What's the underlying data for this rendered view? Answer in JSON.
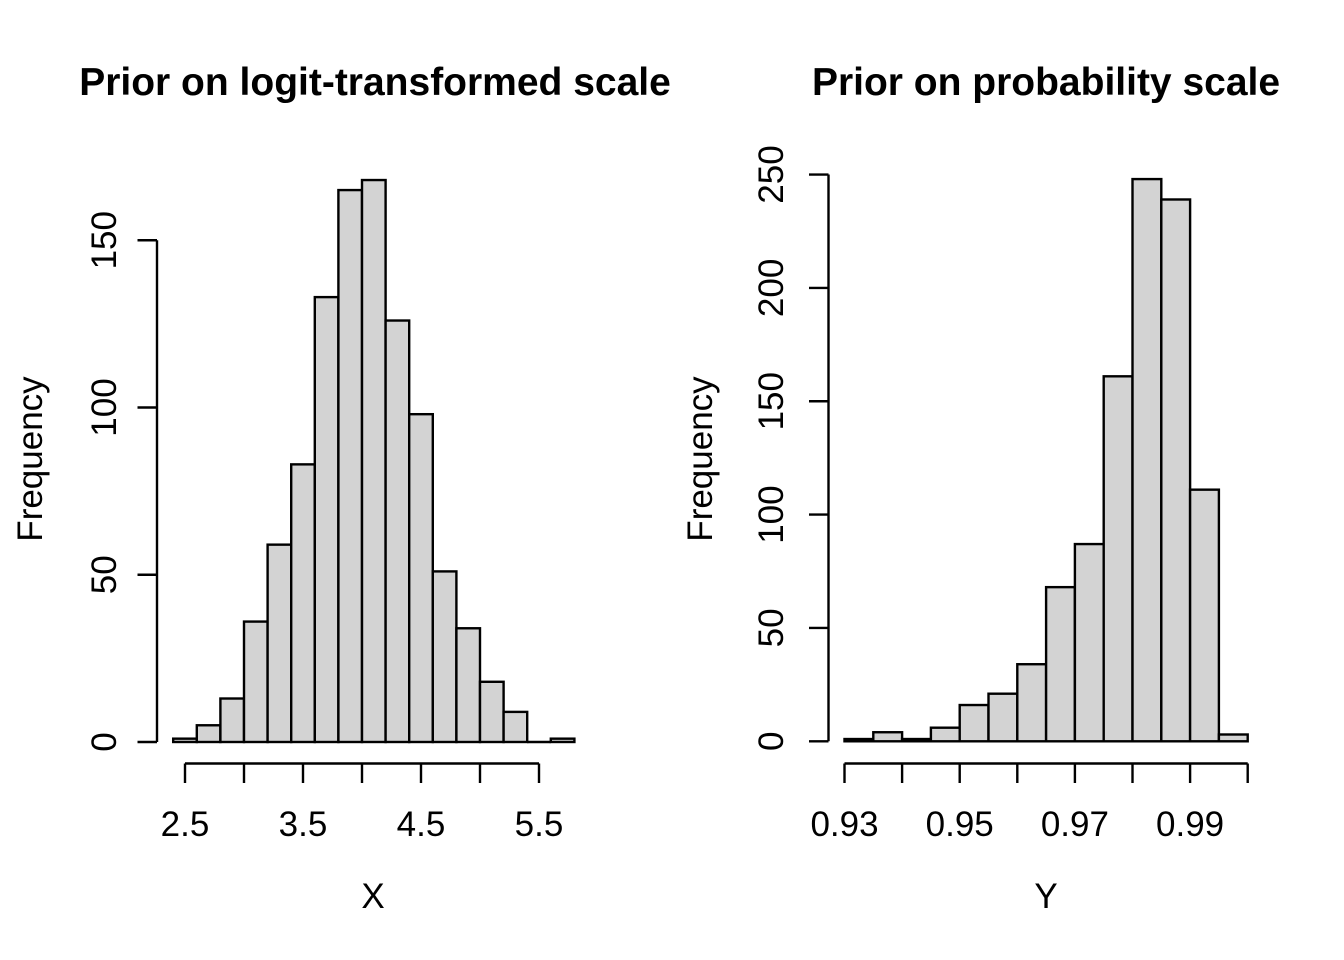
{
  "figure": {
    "background": "#ffffff",
    "bar_fill": "#d3d3d3",
    "bar_stroke": "#000000",
    "axis_color": "#000000",
    "text_color": "#000000"
  },
  "chart_data": [
    {
      "type": "bar",
      "subtype": "histogram",
      "title": "Prior on logit-transformed scale",
      "xlabel": "X",
      "ylabel": "Frequency",
      "bin_edges": [
        2.4,
        2.6,
        2.8,
        3.0,
        3.2,
        3.4,
        3.6,
        3.8,
        4.0,
        4.2,
        4.4,
        4.6,
        4.8,
        5.0,
        5.2,
        5.4,
        5.6,
        5.8
      ],
      "counts": [
        1,
        5,
        13,
        36,
        59,
        83,
        133,
        165,
        168,
        126,
        98,
        51,
        34,
        18,
        9,
        0,
        1
      ],
      "total_draws": 1000,
      "x_axis": {
        "ticks": [
          2.5,
          3.0,
          3.5,
          4.0,
          4.5,
          5.0,
          5.5
        ],
        "labeled_ticks": [
          2.5,
          3.5,
          4.5,
          5.5
        ],
        "tick_labels": [
          "2.5",
          "3.5",
          "4.5",
          "5.5"
        ]
      },
      "y_axis": {
        "ticks": [
          0,
          50,
          100,
          150
        ],
        "tick_labels": [
          "0",
          "50",
          "100",
          "150"
        ]
      },
      "xlim": [
        2.264,
        5.936
      ],
      "ylim": [
        0,
        168
      ],
      "grid": false,
      "legend": null
    },
    {
      "type": "bar",
      "subtype": "histogram",
      "title": "Prior on probability scale",
      "xlabel": "Y",
      "ylabel": "Frequency",
      "bin_edges": [
        0.93,
        0.935,
        0.94,
        0.945,
        0.95,
        0.955,
        0.96,
        0.965,
        0.97,
        0.975,
        0.98,
        0.985,
        0.99,
        0.995,
        1.0
      ],
      "counts": [
        1,
        4,
        1,
        6,
        16,
        21,
        34,
        68,
        87,
        161,
        248,
        239,
        111,
        3
      ],
      "total_draws": 1000,
      "x_axis": {
        "ticks": [
          0.93,
          0.94,
          0.95,
          0.96,
          0.97,
          0.98,
          0.99,
          1.0
        ],
        "labeled_ticks": [
          0.93,
          0.95,
          0.97,
          0.99
        ],
        "tick_labels": [
          "0.93",
          "0.95",
          "0.97",
          "0.99"
        ]
      },
      "y_axis": {
        "ticks": [
          0,
          50,
          100,
          150,
          200,
          250
        ],
        "tick_labels": [
          "0",
          "50",
          "100",
          "150",
          "200",
          "250"
        ]
      },
      "xlim": [
        0.9272,
        1.0028
      ],
      "ylim": [
        0,
        250
      ],
      "grid": false,
      "legend": null
    }
  ]
}
